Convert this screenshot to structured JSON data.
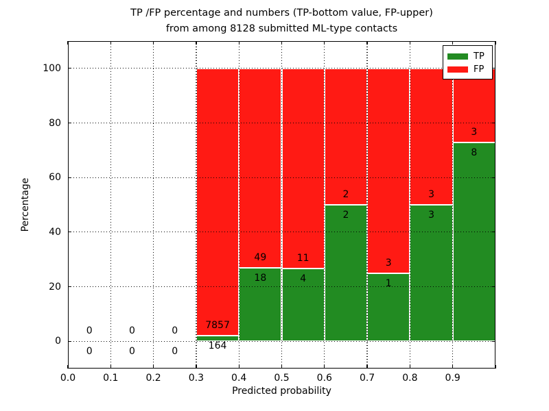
{
  "figure": {
    "title_line1": "TP /FP percentage and numbers (TP-bottom value, FP-upper)",
    "title_line2": "from among 8128 submitted ML-type contacts"
  },
  "chart_data": {
    "type": "bar",
    "stacked": true,
    "normalized": "percent",
    "title": "TP /FP percentage and numbers (TP-bottom value, FP-upper)\nfrom among 8128 submitted ML-type contacts",
    "xlabel": "Predicted probability",
    "ylabel": "Percentage",
    "xlim": [
      0.0,
      1.0
    ],
    "ylim": [
      -10,
      110
    ],
    "bin_width": 0.1,
    "xticks": [
      "0.0",
      "0.1",
      "0.2",
      "0.3",
      "0.4",
      "0.5",
      "0.6",
      "0.7",
      "0.8",
      "0.9"
    ],
    "yticks": [
      0,
      20,
      40,
      60,
      80,
      100
    ],
    "grid": true,
    "legend_position": "upper right",
    "total_contacts": 8128,
    "series": [
      {
        "name": "TP",
        "color": "#228B22"
      },
      {
        "name": "FP",
        "color": "#FF1A14"
      }
    ],
    "bins": [
      {
        "x0": 0.0,
        "tp": 0,
        "fp": 0
      },
      {
        "x0": 0.1,
        "tp": 0,
        "fp": 0
      },
      {
        "x0": 0.2,
        "tp": 0,
        "fp": 0
      },
      {
        "x0": 0.3,
        "tp": 164,
        "fp": 7857
      },
      {
        "x0": 0.4,
        "tp": 18,
        "fp": 49
      },
      {
        "x0": 0.5,
        "tp": 4,
        "fp": 11
      },
      {
        "x0": 0.6,
        "tp": 2,
        "fp": 2
      },
      {
        "x0": 0.7,
        "tp": 1,
        "fp": 3
      },
      {
        "x0": 0.8,
        "tp": 3,
        "fp": 3
      },
      {
        "x0": 0.9,
        "tp": 8,
        "fp": 3
      }
    ]
  }
}
